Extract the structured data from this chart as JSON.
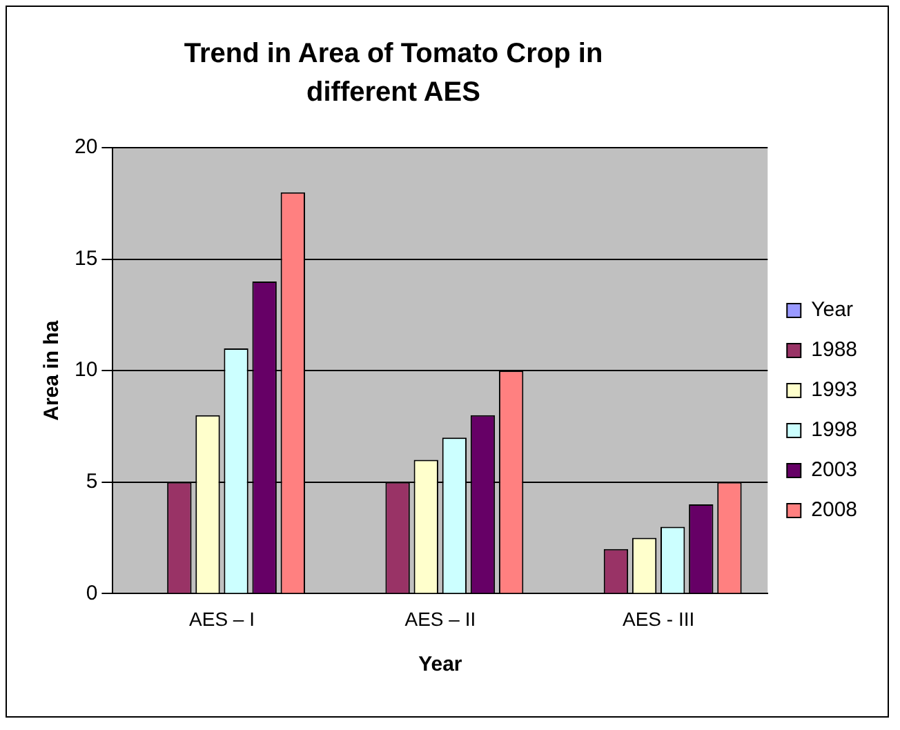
{
  "chart_data": {
    "type": "bar",
    "title": "Trend in Area of Tomato Crop in different AES",
    "xlabel": "Year",
    "ylabel": "Area in ha",
    "categories": [
      "AES – I",
      "AES – II",
      "AES - III"
    ],
    "series": [
      {
        "name": "Year",
        "color": "#9999ff",
        "values": [
          null,
          null,
          null
        ]
      },
      {
        "name": "1988",
        "color": "#993366",
        "values": [
          5,
          5,
          2
        ]
      },
      {
        "name": "1993",
        "color": "#ffffcc",
        "values": [
          8,
          6,
          2.5
        ]
      },
      {
        "name": "1998",
        "color": "#ccffff",
        "values": [
          11,
          7,
          3
        ]
      },
      {
        "name": "2003",
        "color": "#660066",
        "values": [
          14,
          8,
          4
        ]
      },
      {
        "name": "2008",
        "color": "#ff8080",
        "values": [
          18,
          10,
          5
        ]
      }
    ],
    "ylim": [
      0,
      20
    ],
    "yticks": [
      0,
      5,
      10,
      15,
      20
    ],
    "grid": "y",
    "legend": "right"
  }
}
